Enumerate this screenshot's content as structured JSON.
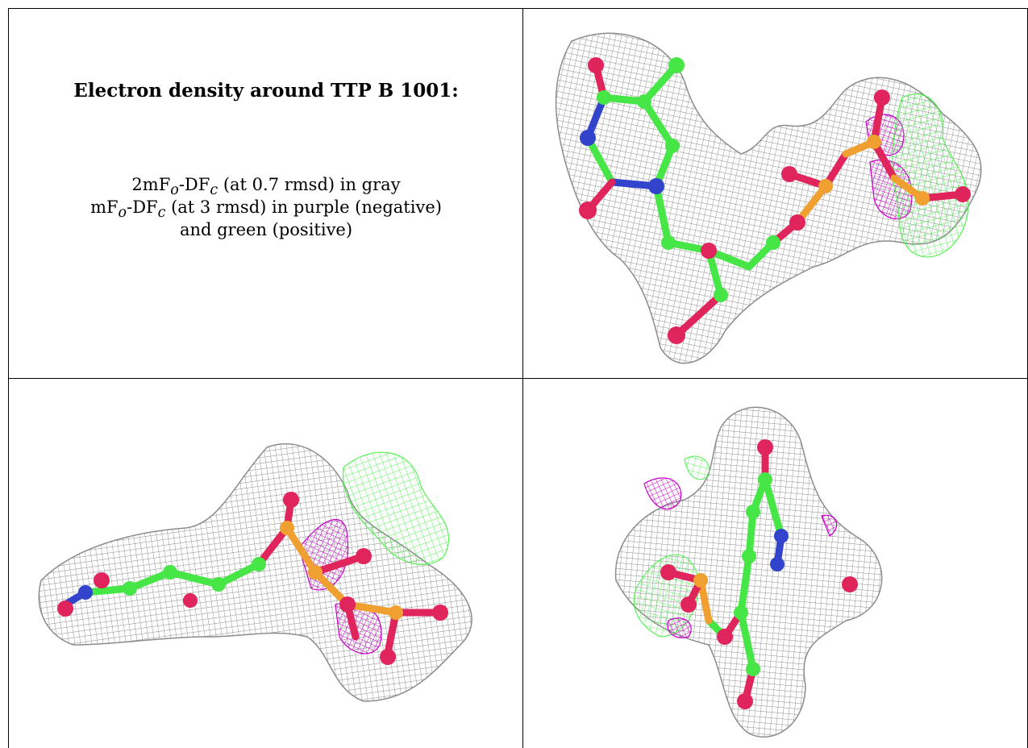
{
  "caption": {
    "title": "Electron density around TTP B 1001:",
    "line1": {
      "prefix": "2mF",
      "sub1": "o",
      "mid": "-DF",
      "sub2": "c",
      "suffix": " (at 0.7 rmsd) in gray"
    },
    "line2": {
      "prefix": "mF",
      "sub1": "o",
      "mid": "-DF",
      "sub2": "c",
      "suffix": " (at 3 rmsd) in purple (negative)"
    },
    "line3": "and green (positive)"
  },
  "colors": {
    "mesh_2fofc": "#8c8c8c",
    "mesh_negative": "#c800c8",
    "mesh_positive": "#3cf03c",
    "carbon": "#46e646",
    "oxygen": "#e0245c",
    "nitrogen": "#3344cc",
    "phosphorus": "#f0a030"
  },
  "panels": [
    {
      "view": "top-right",
      "content": "electron-density-view-1"
    },
    {
      "view": "bottom-left",
      "content": "electron-density-view-2"
    },
    {
      "view": "bottom-right",
      "content": "electron-density-view-3"
    }
  ]
}
